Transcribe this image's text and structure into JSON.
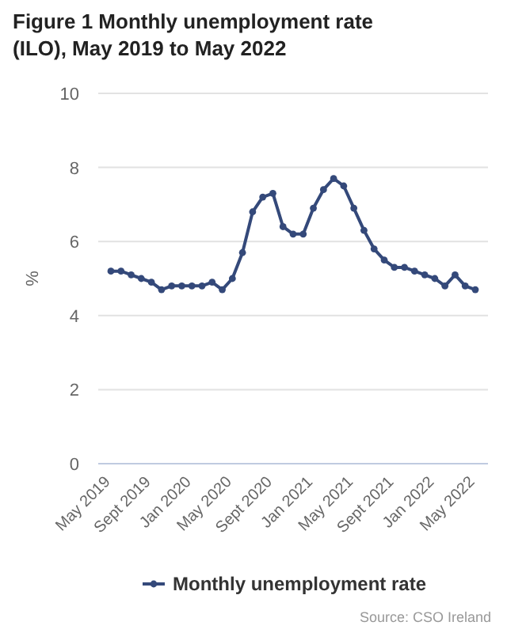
{
  "chart_data": {
    "type": "line",
    "title": "Figure 1 Monthly unemployment rate (ILO), May 2019 to May 2022",
    "ylabel": "%",
    "categories": [
      "May 2019",
      null,
      null,
      null,
      "Sept 2019",
      null,
      null,
      null,
      "Jan 2020",
      null,
      null,
      null,
      "May 2020",
      null,
      null,
      null,
      "Sept 2020",
      null,
      null,
      null,
      "Jan 2021",
      null,
      null,
      null,
      "May 2021",
      null,
      null,
      null,
      "Sept 2021",
      null,
      null,
      null,
      "Jan 2022",
      null,
      null,
      null,
      "May 2022"
    ],
    "series": [
      {
        "name": "Monthly unemployment rate",
        "color": "#34497a",
        "values": [
          5.2,
          5.2,
          5.1,
          5.0,
          4.9,
          4.7,
          4.8,
          4.8,
          4.8,
          4.8,
          4.9,
          4.7,
          5.0,
          5.7,
          6.8,
          7.2,
          7.3,
          6.4,
          6.2,
          6.2,
          6.9,
          7.4,
          7.7,
          7.5,
          6.9,
          6.3,
          5.8,
          5.5,
          5.3,
          5.3,
          5.2,
          5.1,
          5.0,
          4.8,
          5.1,
          4.8,
          4.7
        ]
      }
    ],
    "ylim": [
      0,
      10
    ],
    "yticks": [
      0,
      2,
      4,
      6,
      8,
      10
    ],
    "grid": "y",
    "legend": "bottom",
    "marker": "circle",
    "line_style": "solid",
    "annotations": [
      "Source: CSO Ireland"
    ]
  }
}
